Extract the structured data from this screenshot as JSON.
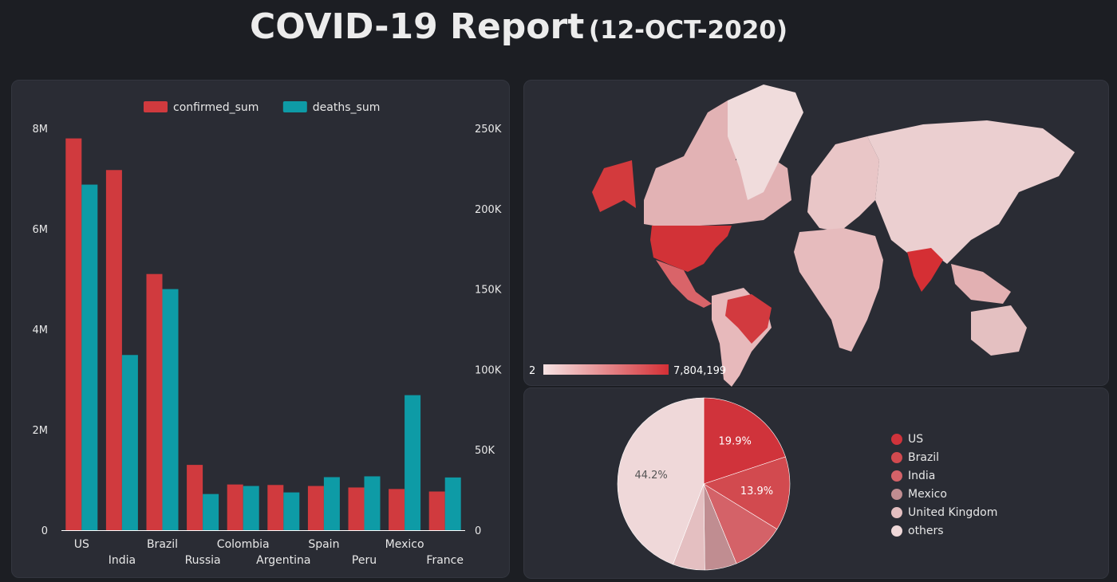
{
  "title": {
    "main": "COVID-19 Report",
    "date": "(12-OCT-2020)"
  },
  "colors": {
    "confirmed": "#d03a3e",
    "deaths": "#0e9ba6",
    "panel_bg": "#2a2c34",
    "map_low": "#f4dede",
    "map_high": "#d42f35"
  },
  "chart_data": [
    {
      "type": "bar",
      "categories": [
        "US",
        "India",
        "Brazil",
        "Russia",
        "Colombia",
        "Argentina",
        "Spain",
        "Peru",
        "Mexico",
        "France"
      ],
      "series": [
        {
          "name": "confirmed_sum",
          "axis": "left",
          "values": [
            7800000,
            7170000,
            5100000,
            1300000,
            910000,
            900000,
            880000,
            850000,
            820000,
            770000
          ]
        },
        {
          "name": "deaths_sum",
          "axis": "right",
          "values": [
            215000,
            109000,
            150000,
            22500,
            27500,
            23500,
            33000,
            33500,
            84000,
            32800
          ]
        }
      ],
      "y_left": {
        "lim": [
          0,
          8000000
        ],
        "ticks": [
          0,
          2000000,
          4000000,
          6000000,
          8000000
        ],
        "tick_labels": [
          "0",
          "2M",
          "4M",
          "6M",
          "8M"
        ]
      },
      "y_right": {
        "lim": [
          0,
          250000
        ],
        "ticks": [
          0,
          50000,
          100000,
          150000,
          200000,
          250000
        ],
        "tick_labels": [
          "0",
          "50K",
          "100K",
          "150K",
          "200K",
          "250K"
        ]
      },
      "legend": "top-center",
      "grid": false
    },
    {
      "type": "map",
      "color_scale": {
        "min": 2,
        "max": 7804199,
        "min_label": "2",
        "max_label": "7,804,199"
      }
    },
    {
      "type": "pie",
      "labels": [
        "US",
        "Brazil",
        "India",
        "Mexico",
        "United Kingdom",
        "others"
      ],
      "values": [
        19.9,
        13.9,
        10.0,
        6.0,
        6.0,
        44.2
      ],
      "data_labels": [
        "19.9%",
        "13.9%",
        "",
        "",
        "",
        "44.2%"
      ],
      "colors": [
        "#d0333b",
        "#d24a4f",
        "#d46268",
        "#c08d91",
        "#e4bfc1",
        "#efd8d9"
      ],
      "legend": "right"
    }
  ]
}
